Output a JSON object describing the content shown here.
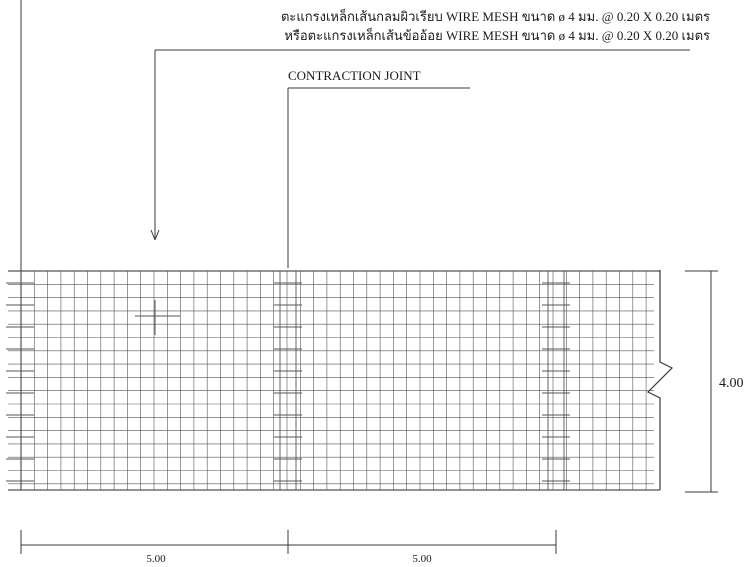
{
  "labels": {
    "mesh_line1": "ตะแกรงเหล็กเส้นกลมผิวเรียบ WIRE MESH ขนาด ø 4 มม. @ 0.20 X 0.20 เมตร",
    "mesh_line2": "หรือตะแกรงเหล็กเส้นข้ออ้อย WIRE MESH ขนาด ø 4 มม. @ 0.20 X 0.20 เมตร",
    "contraction_joint": "CONTRACTION JOINT"
  },
  "dimensions": {
    "width_left": "5.00",
    "width_right": "5.00",
    "height": "4.00"
  }
}
